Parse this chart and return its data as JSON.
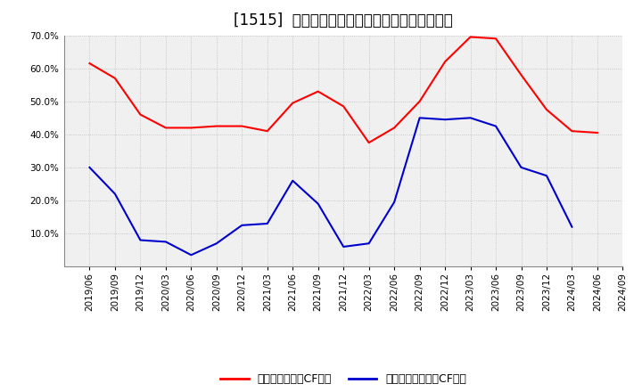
{
  "title": "[1515]  有利子負債キャッシュフロー比率の推移",
  "x_labels": [
    "2019/06",
    "2019/09",
    "2019/12",
    "2020/03",
    "2020/06",
    "2020/09",
    "2020/12",
    "2021/03",
    "2021/06",
    "2021/09",
    "2021/12",
    "2022/03",
    "2022/06",
    "2022/09",
    "2022/12",
    "2023/03",
    "2023/06",
    "2023/09",
    "2023/12",
    "2024/03",
    "2024/06",
    "2024/09"
  ],
  "red_values": [
    61.5,
    57.0,
    46.0,
    42.0,
    42.0,
    42.5,
    42.5,
    41.0,
    49.5,
    53.0,
    48.5,
    37.5,
    42.0,
    50.0,
    62.0,
    69.5,
    69.0,
    58.0,
    47.5,
    41.0,
    40.5,
    null
  ],
  "blue_values": [
    30.0,
    22.0,
    8.0,
    7.5,
    3.5,
    7.0,
    12.5,
    13.0,
    26.0,
    19.0,
    6.0,
    7.0,
    19.5,
    45.0,
    44.5,
    45.0,
    42.5,
    30.0,
    27.5,
    12.0,
    null,
    null
  ],
  "red_label": "有利子負債営業CF比率",
  "blue_label": "有利子負債フリーCF比率",
  "ylim": [
    0,
    70
  ],
  "yticks": [
    10.0,
    20.0,
    30.0,
    40.0,
    50.0,
    60.0,
    70.0
  ],
  "background_color": "#ffffff",
  "plot_area_color": "#f0f0f0",
  "grid_color": "#bbbbbb",
  "red_color": "#ff0000",
  "blue_color": "#0000cc",
  "title_fontsize": 12,
  "tick_fontsize": 7.5,
  "legend_fontsize": 9
}
